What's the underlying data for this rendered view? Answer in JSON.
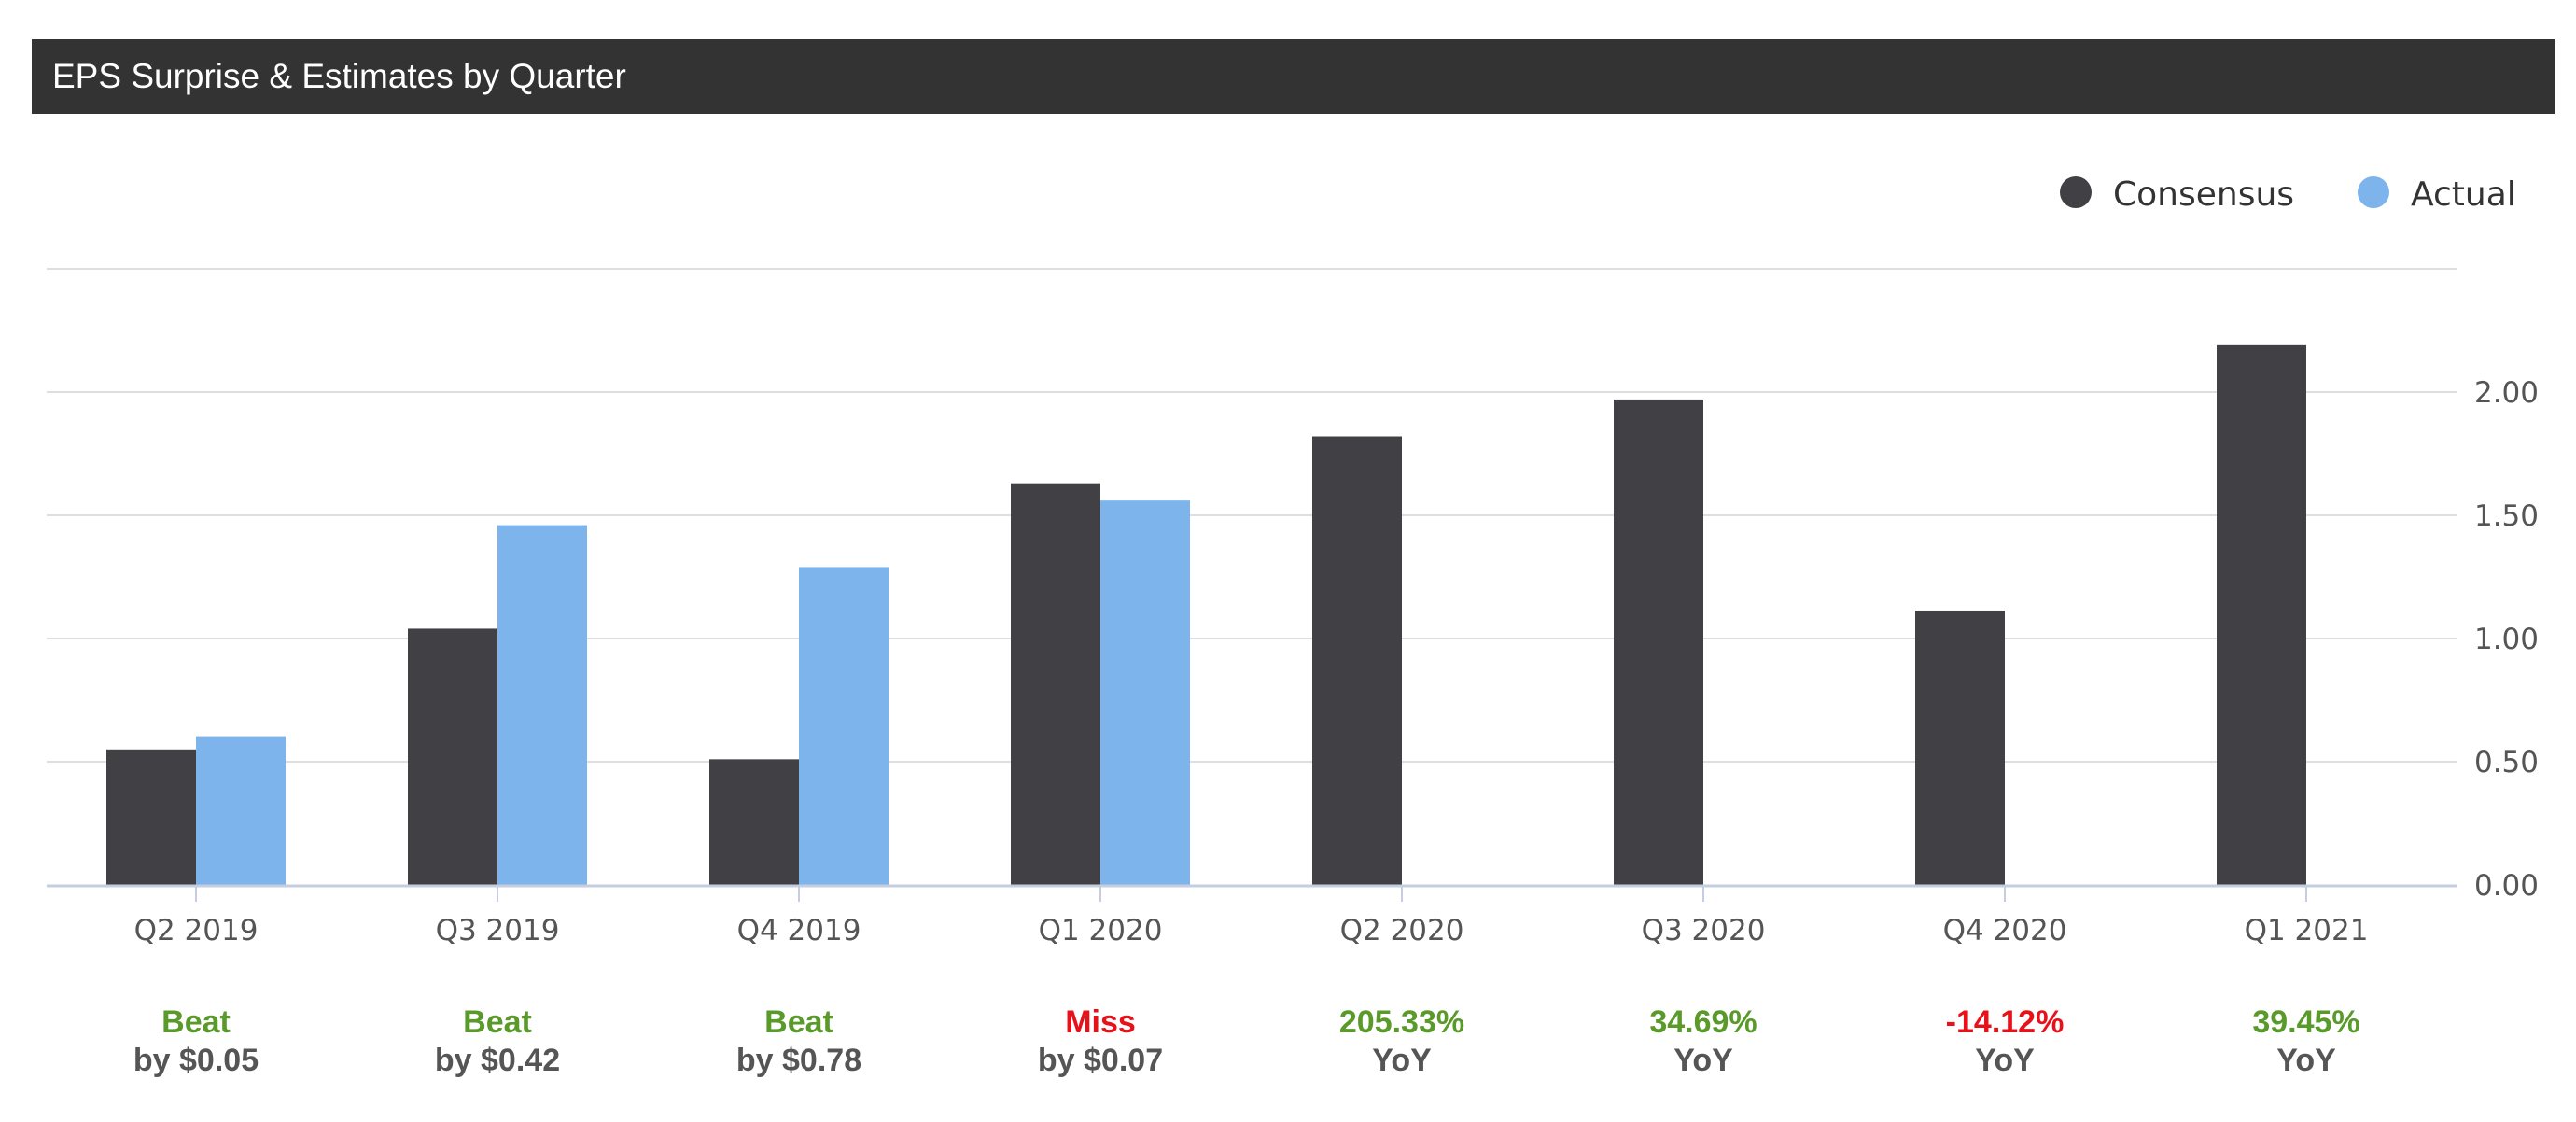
{
  "header": {
    "title": "EPS Surprise & Estimates by Quarter"
  },
  "colors": {
    "consensus": "#404045",
    "actual": "#7cb4eb",
    "positive": "#5a9a2a",
    "negative": "#e8111a",
    "grid": "#dedede",
    "axis": "#c5cde0"
  },
  "legend": [
    {
      "name": "Consensus",
      "color": "#404045"
    },
    {
      "name": "Actual",
      "color": "#7cb4eb"
    }
  ],
  "chart_data": {
    "type": "bar",
    "title": "EPS Surprise & Estimates by Quarter",
    "categories": [
      "Q2 2019",
      "Q3 2019",
      "Q4 2019",
      "Q1 2020",
      "Q2 2020",
      "Q3 2020",
      "Q4 2020",
      "Q1 2021"
    ],
    "series": [
      {
        "name": "Consensus",
        "values": [
          0.55,
          1.04,
          0.51,
          1.63,
          1.82,
          1.97,
          1.11,
          2.19
        ]
      },
      {
        "name": "Actual",
        "values": [
          0.6,
          1.46,
          1.29,
          1.56,
          null,
          null,
          null,
          null
        ]
      }
    ],
    "yticks": [
      "0.00",
      "0.50",
      "1.00",
      "1.50",
      "2.00"
    ],
    "ylim": [
      0,
      2.5
    ],
    "axis_position": "right",
    "grid": true,
    "legend_position": "top-right",
    "surprises": [
      {
        "top": "Beat",
        "bottom": "by $0.05",
        "status": "positive"
      },
      {
        "top": "Beat",
        "bottom": "by $0.42",
        "status": "positive"
      },
      {
        "top": "Beat",
        "bottom": "by $0.78",
        "status": "positive"
      },
      {
        "top": "Miss",
        "bottom": "by $0.07",
        "status": "negative"
      },
      {
        "top": "205.33%",
        "bottom": "YoY",
        "status": "positive"
      },
      {
        "top": "34.69%",
        "bottom": "YoY",
        "status": "positive"
      },
      {
        "top": "-14.12%",
        "bottom": "YoY",
        "status": "negative"
      },
      {
        "top": "39.45%",
        "bottom": "YoY",
        "status": "positive"
      }
    ]
  }
}
